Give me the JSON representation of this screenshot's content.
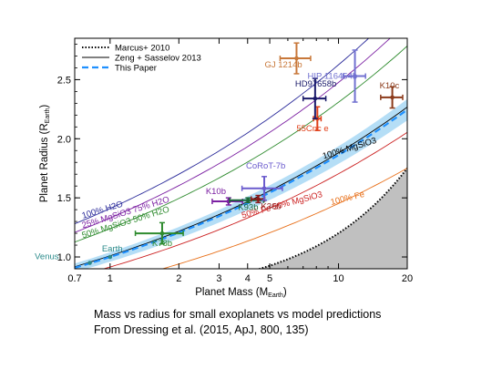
{
  "chart_data": {
    "type": "scatter",
    "title": "",
    "xlabel": "Planet Mass (M",
    "xlabel_sub": "Earth",
    "xlabel_end": ")",
    "ylabel": "Planet Radius (R",
    "ylabel_sub": "Earth",
    "ylabel_end": ")",
    "xscale": "log",
    "xlim": [
      0.7,
      20
    ],
    "ylim": [
      0.9,
      2.85
    ],
    "xticks": [
      0.7,
      1,
      2,
      3,
      4,
      5,
      6,
      7,
      8,
      9,
      10,
      20
    ],
    "xtick_labels": [
      "0.7",
      "1",
      "2",
      "3",
      "4",
      "5",
      "",
      "",
      "",
      "",
      "10",
      "20"
    ],
    "yticks": [
      1.0,
      1.5,
      2.0,
      2.5
    ],
    "ytick_labels": [
      "1.0",
      "1.5",
      "2.0",
      "2.5"
    ],
    "legend": {
      "position": "top-left",
      "entries": [
        {
          "label": "Marcus+ 2010",
          "style": "dotted",
          "color": "#000000"
        },
        {
          "label": "Zeng + Sasselov 2013",
          "style": "solid",
          "color": "#000000"
        },
        {
          "label": "This Paper",
          "style": "dashed",
          "color": "#1e90ff"
        }
      ]
    },
    "model_curves": [
      {
        "label": "100% H2O",
        "color": "#2a2a9a",
        "c": 1.41
      },
      {
        "label": "25% MgSiO3 75% H2O",
        "color": "#7b1fa2",
        "c": 1.33
      },
      {
        "label": "50% MgSiO3 50% H2O",
        "color": "#2e8b2e",
        "c": 1.24
      },
      {
        "label": "100% MgSiO3",
        "color": "#000000",
        "c": 1.01
      },
      {
        "label": "50% Fe 50% MgSiO3",
        "color": "#cc2222",
        "c": 0.915
      },
      {
        "label": "100% Fe",
        "color": "#e8701a",
        "c": 0.78
      }
    ],
    "this_paper_band": {
      "c": 1.0,
      "c_low": 0.96,
      "c_high": 1.04,
      "color": "#1e90ff",
      "band_color": "#a8d8f5"
    },
    "exclusion_region": {
      "label": "Marcus+ 2010",
      "color": "#c0c0c0"
    },
    "series": [
      {
        "name": "Venus",
        "x": 0.815,
        "y": 0.95,
        "color": "#2a8a8a",
        "xerr": [
          0,
          0
        ],
        "yerr": [
          0,
          0
        ]
      },
      {
        "name": "Earth",
        "x": 1.0,
        "y": 1.0,
        "color": "#2a8a8a",
        "xerr": [
          0,
          0
        ],
        "yerr": [
          0,
          0
        ]
      },
      {
        "name": "K78b",
        "x": 1.69,
        "y": 1.2,
        "color": "#2e8b2e",
        "xerr": [
          0.4,
          0.4
        ],
        "yerr": [
          0.09,
          0.09
        ]
      },
      {
        "name": "K10b",
        "x": 3.3,
        "y": 1.47,
        "color": "#7b1fa2",
        "xerr": [
          0.5,
          0.5
        ],
        "yerr": [
          0.03,
          0.03
        ]
      },
      {
        "name": "K93b",
        "x": 4.02,
        "y": 1.48,
        "color": "#1a6a3a",
        "xerr": [
          0.68,
          0.68
        ],
        "yerr": [
          0.02,
          0.02
        ]
      },
      {
        "name": "K36b",
        "x": 4.45,
        "y": 1.49,
        "color": "#8b1a1a",
        "xerr": [
          0.3,
          0.3
        ],
        "yerr": [
          0.03,
          0.03
        ]
      },
      {
        "name": "CoRoT-7b",
        "x": 4.73,
        "y": 1.58,
        "color": "#6a5acd",
        "xerr": [
          0.95,
          0.95
        ],
        "yerr": [
          0.1,
          0.1
        ]
      },
      {
        "name": "55Cnc e",
        "x": 8.08,
        "y": 2.17,
        "color": "#e0401a",
        "xerr": [
          0.31,
          0.31
        ],
        "yerr": [
          0.1,
          0.1
        ]
      },
      {
        "name": "HD97658b",
        "x": 7.9,
        "y": 2.34,
        "color": "#1a1a6a",
        "xerr": [
          0.9,
          0.9
        ],
        "yerr": [
          0.17,
          0.17
        ]
      },
      {
        "name": "GJ 1214b",
        "x": 6.55,
        "y": 2.68,
        "color": "#c8783a",
        "xerr": [
          1.0,
          1.0
        ],
        "yerr": [
          0.13,
          0.13
        ]
      },
      {
        "name": "HIP 116454b",
        "x": 11.8,
        "y": 2.53,
        "color": "#7070d0",
        "xerr": [
          1.33,
          1.33
        ],
        "yerr": [
          0.22,
          0.22
        ]
      },
      {
        "name": "K10c",
        "x": 17.2,
        "y": 2.35,
        "color": "#8b3a1a",
        "xerr": [
          1.9,
          1.9
        ],
        "yerr": [
          0.09,
          0.09
        ]
      }
    ]
  },
  "caption": {
    "line1": "Mass vs radius for small exoplanets vs model predictions",
    "line2": "From Dressing et al. (2015, ApJ,  800, 135)"
  }
}
